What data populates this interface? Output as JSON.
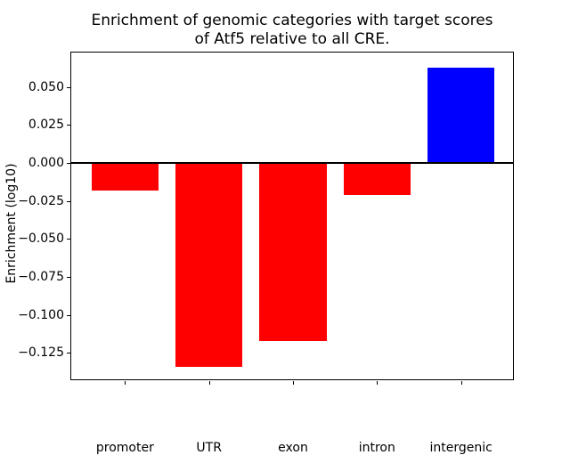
{
  "chart_data": {
    "type": "bar",
    "title": "Enrichment of genomic categories with target scores\nof Atf5 relative to all CRE.",
    "xlabel": "",
    "ylabel": "Enrichment (log10)",
    "categories": [
      "promoter",
      "UTR",
      "exon",
      "intron",
      "intergenic"
    ],
    "values": [
      -0.018,
      -0.134,
      -0.117,
      -0.021,
      0.063
    ],
    "bar_colors": [
      "#ff0000",
      "#ff0000",
      "#ff0000",
      "#ff0000",
      "#0000ff"
    ],
    "ylim": [
      -0.1435,
      0.0727
    ],
    "yticks": [
      0.05,
      0.025,
      0.0,
      -0.025,
      -0.05,
      -0.075,
      -0.1,
      -0.125
    ],
    "ytick_labels": [
      "0.050",
      "0.025",
      "0.000",
      "−0.025",
      "−0.050",
      "−0.075",
      "−0.100",
      "−0.125"
    ],
    "bar_width_fraction": 0.8,
    "grid": false,
    "legend": null,
    "zero_line": true,
    "background_color": "#ffffff",
    "text_color": "#000000"
  }
}
